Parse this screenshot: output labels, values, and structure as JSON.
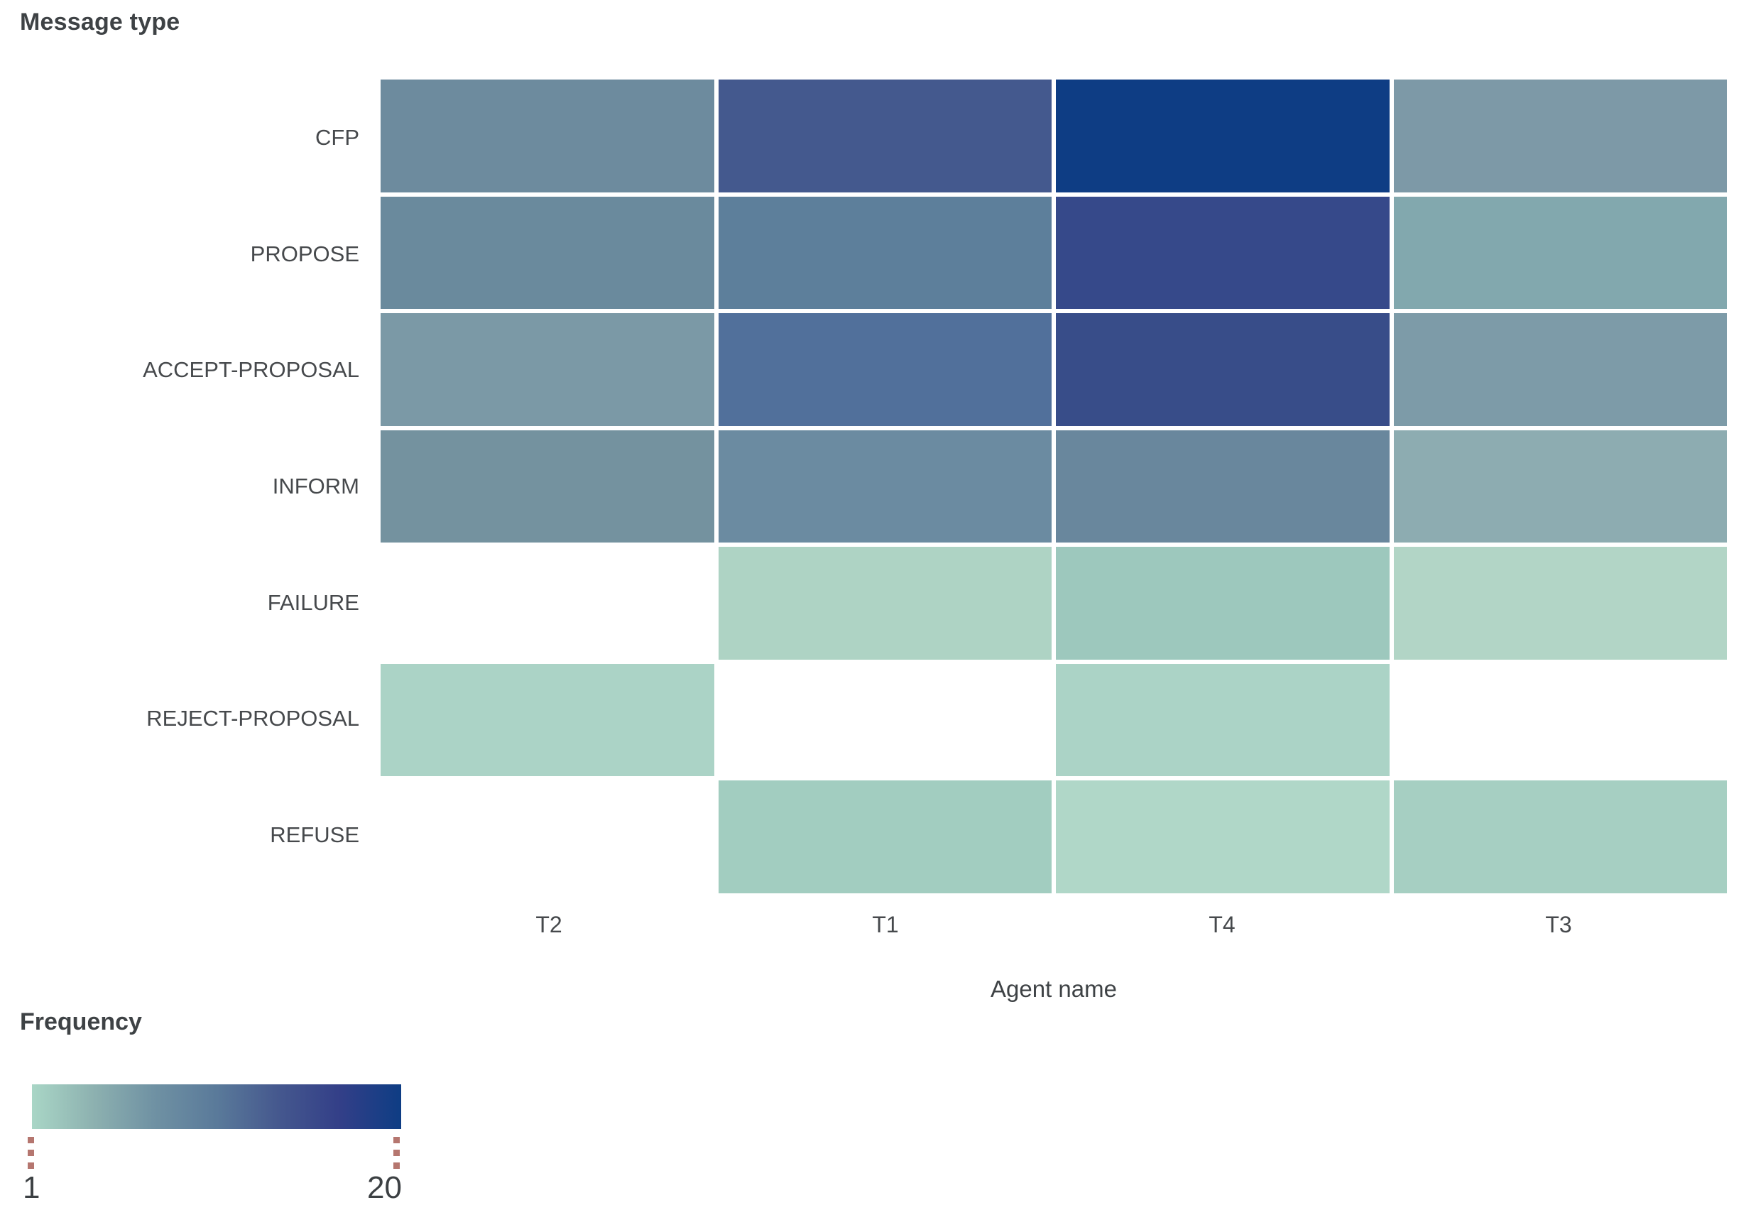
{
  "colors": {
    "background": "#ffffff",
    "title_text": "#3e4245",
    "tick_text": "#46494c",
    "empty_cell": "#ffffff",
    "legend_tick_dots": "#b5766f",
    "scale_min_color": "#a9d6c6",
    "scale_max_color": "#0e3d84"
  },
  "y_axis": {
    "title": "Message type"
  },
  "x_axis": {
    "title": "Agent name"
  },
  "legend": {
    "title": "Frequency",
    "min_label": "1",
    "max_label": "20",
    "gradient_stops": [
      "#a9d6c6",
      "#8db1b0",
      "#6f91a3",
      "#5a7a9a",
      "#45588e",
      "#333f88",
      "#0e3d84"
    ]
  },
  "chart_data": {
    "type": "heatmap",
    "title": "",
    "xlabel": "Agent name",
    "ylabel": "Message type",
    "legend_label": "Frequency",
    "x_categories": [
      "T2",
      "T1",
      "T4",
      "T3"
    ],
    "y_categories": [
      "CFP",
      "PROPOSE",
      "ACCEPT-PROPOSAL",
      "INFORM",
      "FAILURE",
      "REJECT-PROPOSAL",
      "REFUSE"
    ],
    "color_scale": {
      "min": 1,
      "max": 20
    },
    "values": [
      [
        9,
        15,
        20,
        7
      ],
      [
        10,
        11,
        17,
        6
      ],
      [
        7,
        13,
        17,
        7
      ],
      [
        9,
        9,
        10,
        5
      ],
      [
        null,
        1,
        3,
        1
      ],
      [
        1,
        null,
        1,
        null
      ],
      [
        null,
        3,
        1,
        2
      ]
    ],
    "cell_colors": [
      [
        "#6d8b9e",
        "#44598e",
        "#0e3d84",
        "#7d99a7"
      ],
      [
        "#6a8a9d",
        "#5d7f9b",
        "#36498a",
        "#82a8ae"
      ],
      [
        "#7b99a6",
        "#51709b",
        "#384d89",
        "#7d9ba8"
      ],
      [
        "#74929f",
        "#6b8ba1",
        "#69879d",
        "#8dacb1"
      ],
      [
        null,
        "#aed3c4",
        "#9dc8bd",
        "#b2d5c6"
      ],
      [
        "#abd3c6",
        null,
        "#abd3c6",
        null
      ],
      [
        null,
        "#a2cdc0",
        "#b0d7c8",
        "#a6cfc2"
      ]
    ],
    "grid": false,
    "legend_position": "bottom-left"
  }
}
